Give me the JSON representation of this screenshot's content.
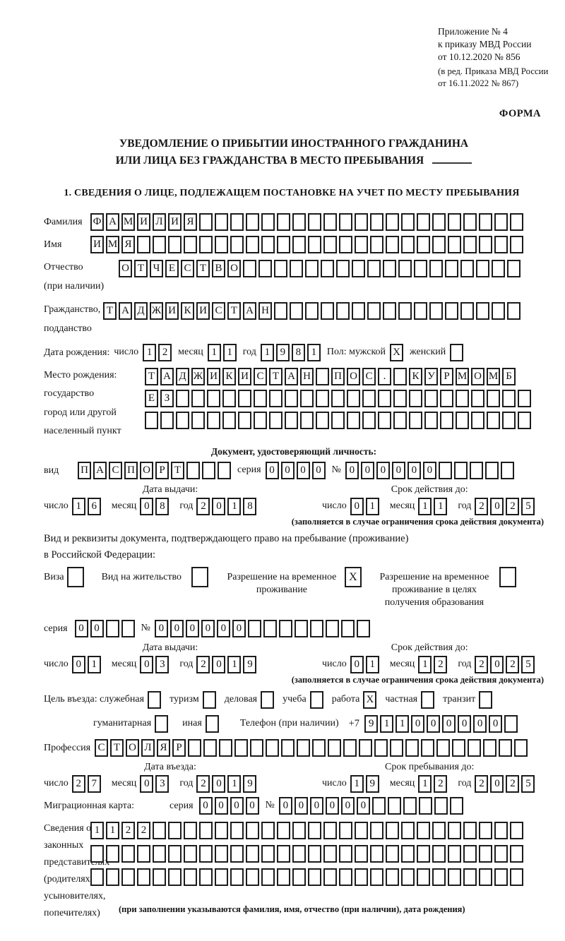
{
  "header": {
    "line1": "Приложение № 4",
    "line2": "к приказу МВД России",
    "line3": "от 10.12.2020 № 856",
    "line4": "(в ред. Приказа МВД России",
    "line5": "от 16.11.2022 № 867)",
    "form_label": "ФОРМА"
  },
  "title": {
    "line1": "УВЕДОМЛЕНИЕ О ПРИБЫТИИ ИНОСТРАННОГО ГРАЖДАНИНА",
    "line2": "ИЛИ ЛИЦА БЕЗ ГРАЖДАНСТВА В МЕСТО ПРЕБЫВАНИЯ"
  },
  "section1_heading": "1. СВЕДЕНИЯ О ЛИЦЕ, ПОДЛЕЖАЩЕМ ПОСТАНОВКЕ НА УЧЕТ ПО МЕСТУ ПРЕБЫВАНИЯ",
  "date_labels": {
    "day": "число",
    "month": "месяц",
    "year": "год"
  },
  "fields": {
    "surname": {
      "label": "Фамилия",
      "cells": {
        "v": "ФАМИЛИЯ",
        "n": 28
      }
    },
    "name": {
      "label": "Имя",
      "cells": {
        "v": "ИМЯ",
        "n": 28
      }
    },
    "patronymic": {
      "label1": "Отчество",
      "label2": "(при наличии)",
      "cells": {
        "v": "ОТЧЕСТВО",
        "n": 26
      }
    },
    "citizenship": {
      "label1": "Гражданство,",
      "label2": "подданство",
      "cells": {
        "v": "ТАДЖИКИСТАН",
        "n": 27
      }
    },
    "birthdate": {
      "label": "Дата рождения:",
      "day": {
        "v": "12",
        "n": 2
      },
      "month": {
        "v": "11",
        "n": 2
      },
      "year": {
        "v": "1981",
        "n": 4
      },
      "sex_label": "Пол: мужской",
      "male_box": {
        "v": "X",
        "n": 1
      },
      "female_label": "женский",
      "female_box": {
        "v": "",
        "n": 1
      }
    },
    "birthplace": {
      "label1": "Место рождения:",
      "label2": "государство",
      "label3": "город или другой",
      "label4": "населенный пункт",
      "row1": {
        "v": "ТАДЖИКИСТАН ПОС. КУРМОМБ",
        "n": 24
      },
      "row2": {
        "v": "ЕЗ",
        "n": 25
      },
      "row3": {
        "v": "",
        "n": 25
      }
    },
    "identity_doc": {
      "heading": "Документ, удостоверяющий личность:",
      "kind_label": "вид",
      "kind": {
        "v": "ПАСПОРТ",
        "n": 10
      },
      "series_label": "серия",
      "series": {
        "v": "0000",
        "n": 4
      },
      "number_label": "№",
      "number": {
        "v": "000000",
        "n": 11
      },
      "issue_title": "Дата выдачи:",
      "issue": {
        "day": {
          "v": "16",
          "n": 2
        },
        "month": {
          "v": "08",
          "n": 2
        },
        "year": {
          "v": "2018",
          "n": 4
        }
      },
      "valid_title": "Срок действия до:",
      "valid": {
        "day": {
          "v": "01",
          "n": 2
        },
        "month": {
          "v": "11",
          "n": 2
        },
        "year": {
          "v": "2025",
          "n": 4
        }
      },
      "note": "(заполняется в случае ограничения срока действия документа)"
    },
    "residence_doc": {
      "line1": "Вид и реквизиты документа, подтверждающего право на пребывание (проживание)",
      "line2": "в Российской Федерации:",
      "visa_label": "Виза",
      "visa_box": {
        "v": "",
        "n": 1
      },
      "permit_label": "Вид на жительство",
      "permit_box": {
        "v": "",
        "n": 1
      },
      "rvp_label": "Разрешение на временное проживание",
      "rvp_box": {
        "v": "X",
        "n": 1
      },
      "rvp_edu_label": "Разрешение на временное проживание в целях получения образования",
      "rvp_edu_box": {
        "v": "",
        "n": 1
      },
      "series_label": "серия",
      "series": {
        "v": "00",
        "n": 4
      },
      "number_label": "№",
      "number": {
        "v": "000000",
        "n": 14
      },
      "issue_title": "Дата выдачи:",
      "issue": {
        "day": {
          "v": "01",
          "n": 2
        },
        "month": {
          "v": "03",
          "n": 2
        },
        "year": {
          "v": "2019",
          "n": 4
        }
      },
      "valid_title": "Срок действия до:",
      "valid": {
        "day": {
          "v": "01",
          "n": 2
        },
        "month": {
          "v": "12",
          "n": 2
        },
        "year": {
          "v": "2025",
          "n": 4
        }
      },
      "note": "(заполняется в случае ограничения срока действия документа)"
    },
    "purpose": {
      "label": "Цель въезда: служебная",
      "options": [
        {
          "label": "туризм",
          "box": {
            "v": "",
            "n": 1
          }
        },
        {
          "label": "деловая",
          "box": {
            "v": "",
            "n": 1
          }
        },
        {
          "label": "учеба",
          "box": {
            "v": "",
            "n": 1
          }
        },
        {
          "label": "работа",
          "box": {
            "v": "X",
            "n": 1
          }
        },
        {
          "label": "частная",
          "box": {
            "v": "",
            "n": 1
          }
        },
        {
          "label": "транзит",
          "box": {
            "v": "",
            "n": 1
          }
        }
      ],
      "first_box": {
        "v": "",
        "n": 1
      },
      "humanitarian_label": "гуманитарная",
      "humanitarian_box": {
        "v": "",
        "n": 1
      },
      "other_label": "иная",
      "other_box": {
        "v": "",
        "n": 1
      }
    },
    "phone": {
      "label": "Телефон (при наличии)",
      "prefix": "+7",
      "cells": {
        "v": "911000000",
        "n": 10
      }
    },
    "profession": {
      "label": "Профессия",
      "cells": {
        "v": "СТОЛЯР",
        "n": 28
      }
    },
    "entry": {
      "entry_title": "Дата въезда:",
      "entry_date": {
        "day": {
          "v": "27",
          "n": 2
        },
        "month": {
          "v": "03",
          "n": 2
        },
        "year": {
          "v": "2019",
          "n": 4
        }
      },
      "stay_title": "Срок пребывания до:",
      "stay_date": {
        "day": {
          "v": "19",
          "n": 2
        },
        "month": {
          "v": "12",
          "n": 2
        },
        "year": {
          "v": "2025",
          "n": 4
        }
      }
    },
    "migration_card": {
      "label": "Миграционная карта:",
      "series_label": "серия",
      "series": {
        "v": "0000",
        "n": 4
      },
      "number_label": "№",
      "number": {
        "v": "000000",
        "n": 12
      }
    },
    "representatives": {
      "label1": "Сведения о",
      "label2": "законных",
      "label3": "представителях",
      "label4": "(родителях,",
      "label5": "усыновителях,",
      "label6": "попечителях)",
      "row1": {
        "v": "1122",
        "n": 28
      },
      "row2": {
        "v": "",
        "n": 28
      },
      "row3": {
        "v": "",
        "n": 28
      },
      "note": "(при заполнении указываются фамилия, имя, отчество (при наличии), дата рождения)"
    }
  }
}
